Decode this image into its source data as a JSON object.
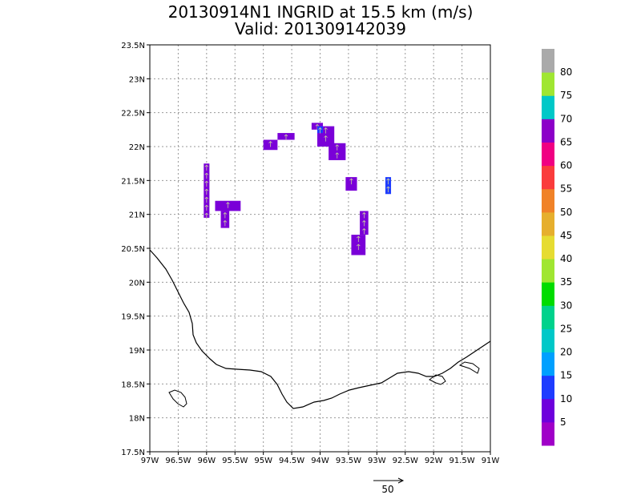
{
  "chart_data": {
    "type": "heatmap",
    "title": "20130914N1 INGRID at 15.5 km (m/s)",
    "subtitle": "Valid: 201309142039",
    "x_ticks": [
      "97W",
      "96.5W",
      "96W",
      "95.5W",
      "95W",
      "94.5W",
      "94W",
      "93.5W",
      "93W",
      "92.5W",
      "92W",
      "91.5W",
      "91W"
    ],
    "y_ticks": [
      "17.5N",
      "18N",
      "18.5N",
      "19N",
      "19.5N",
      "20N",
      "20.5N",
      "21N",
      "21.5N",
      "22N",
      "22.5N",
      "23N",
      "23.5N"
    ],
    "xlim": [
      -97,
      -91
    ],
    "ylim": [
      17.5,
      23.5
    ],
    "grid": true,
    "colorbar": {
      "labels": [
        "5",
        "10",
        "15",
        "20",
        "25",
        "30",
        "35",
        "40",
        "45",
        "50",
        "55",
        "60",
        "65",
        "70",
        "75",
        "80"
      ],
      "colors": [
        "#a000c8",
        "#6e00dc",
        "#1e3cff",
        "#00a0ff",
        "#00c8c8",
        "#00d28c",
        "#00dc00",
        "#a0e632",
        "#e6dc32",
        "#e6af2d",
        "#f08228",
        "#fa3c3c",
        "#f00082",
        "#8c00c8",
        "#00c8c8",
        "#a0e632",
        "#aaaaaa"
      ]
    },
    "wind_patches": [
      {
        "lon": [
          -96.05,
          -95.95
        ],
        "lat": [
          20.95,
          21.75
        ],
        "speed": 6
      },
      {
        "lon": [
          -95.85,
          -95.4
        ],
        "lat": [
          21.05,
          21.2
        ],
        "speed": 6
      },
      {
        "lon": [
          -95.75,
          -95.6
        ],
        "lat": [
          20.8,
          21.05
        ],
        "speed": 6
      },
      {
        "lon": [
          -95.0,
          -94.75
        ],
        "lat": [
          21.95,
          22.1
        ],
        "speed": 6
      },
      {
        "lon": [
          -94.75,
          -94.45
        ],
        "lat": [
          22.1,
          22.2
        ],
        "speed": 6
      },
      {
        "lon": [
          -94.15,
          -93.95
        ],
        "lat": [
          22.25,
          22.35
        ],
        "speed": 6
      },
      {
        "lon": [
          -94.05,
          -93.75
        ],
        "lat": [
          22.0,
          22.3
        ],
        "speed": 6
      },
      {
        "lon": [
          -93.85,
          -93.55
        ],
        "lat": [
          21.8,
          22.05
        ],
        "speed": 6
      },
      {
        "lon": [
          -94.05,
          -93.95
        ],
        "lat": [
          22.2,
          22.3
        ],
        "speed": 10
      },
      {
        "lon": [
          -93.55,
          -93.35
        ],
        "lat": [
          21.35,
          21.55
        ],
        "speed": 6
      },
      {
        "lon": [
          -92.85,
          -92.75
        ],
        "lat": [
          21.3,
          21.55
        ],
        "speed": 11
      },
      {
        "lon": [
          -93.3,
          -93.15
        ],
        "lat": [
          20.7,
          21.05
        ],
        "speed": 6
      },
      {
        "lon": [
          -93.45,
          -93.2
        ],
        "lat": [
          20.4,
          20.7
        ],
        "speed": 6
      }
    ],
    "reference_vector_label": "50"
  }
}
